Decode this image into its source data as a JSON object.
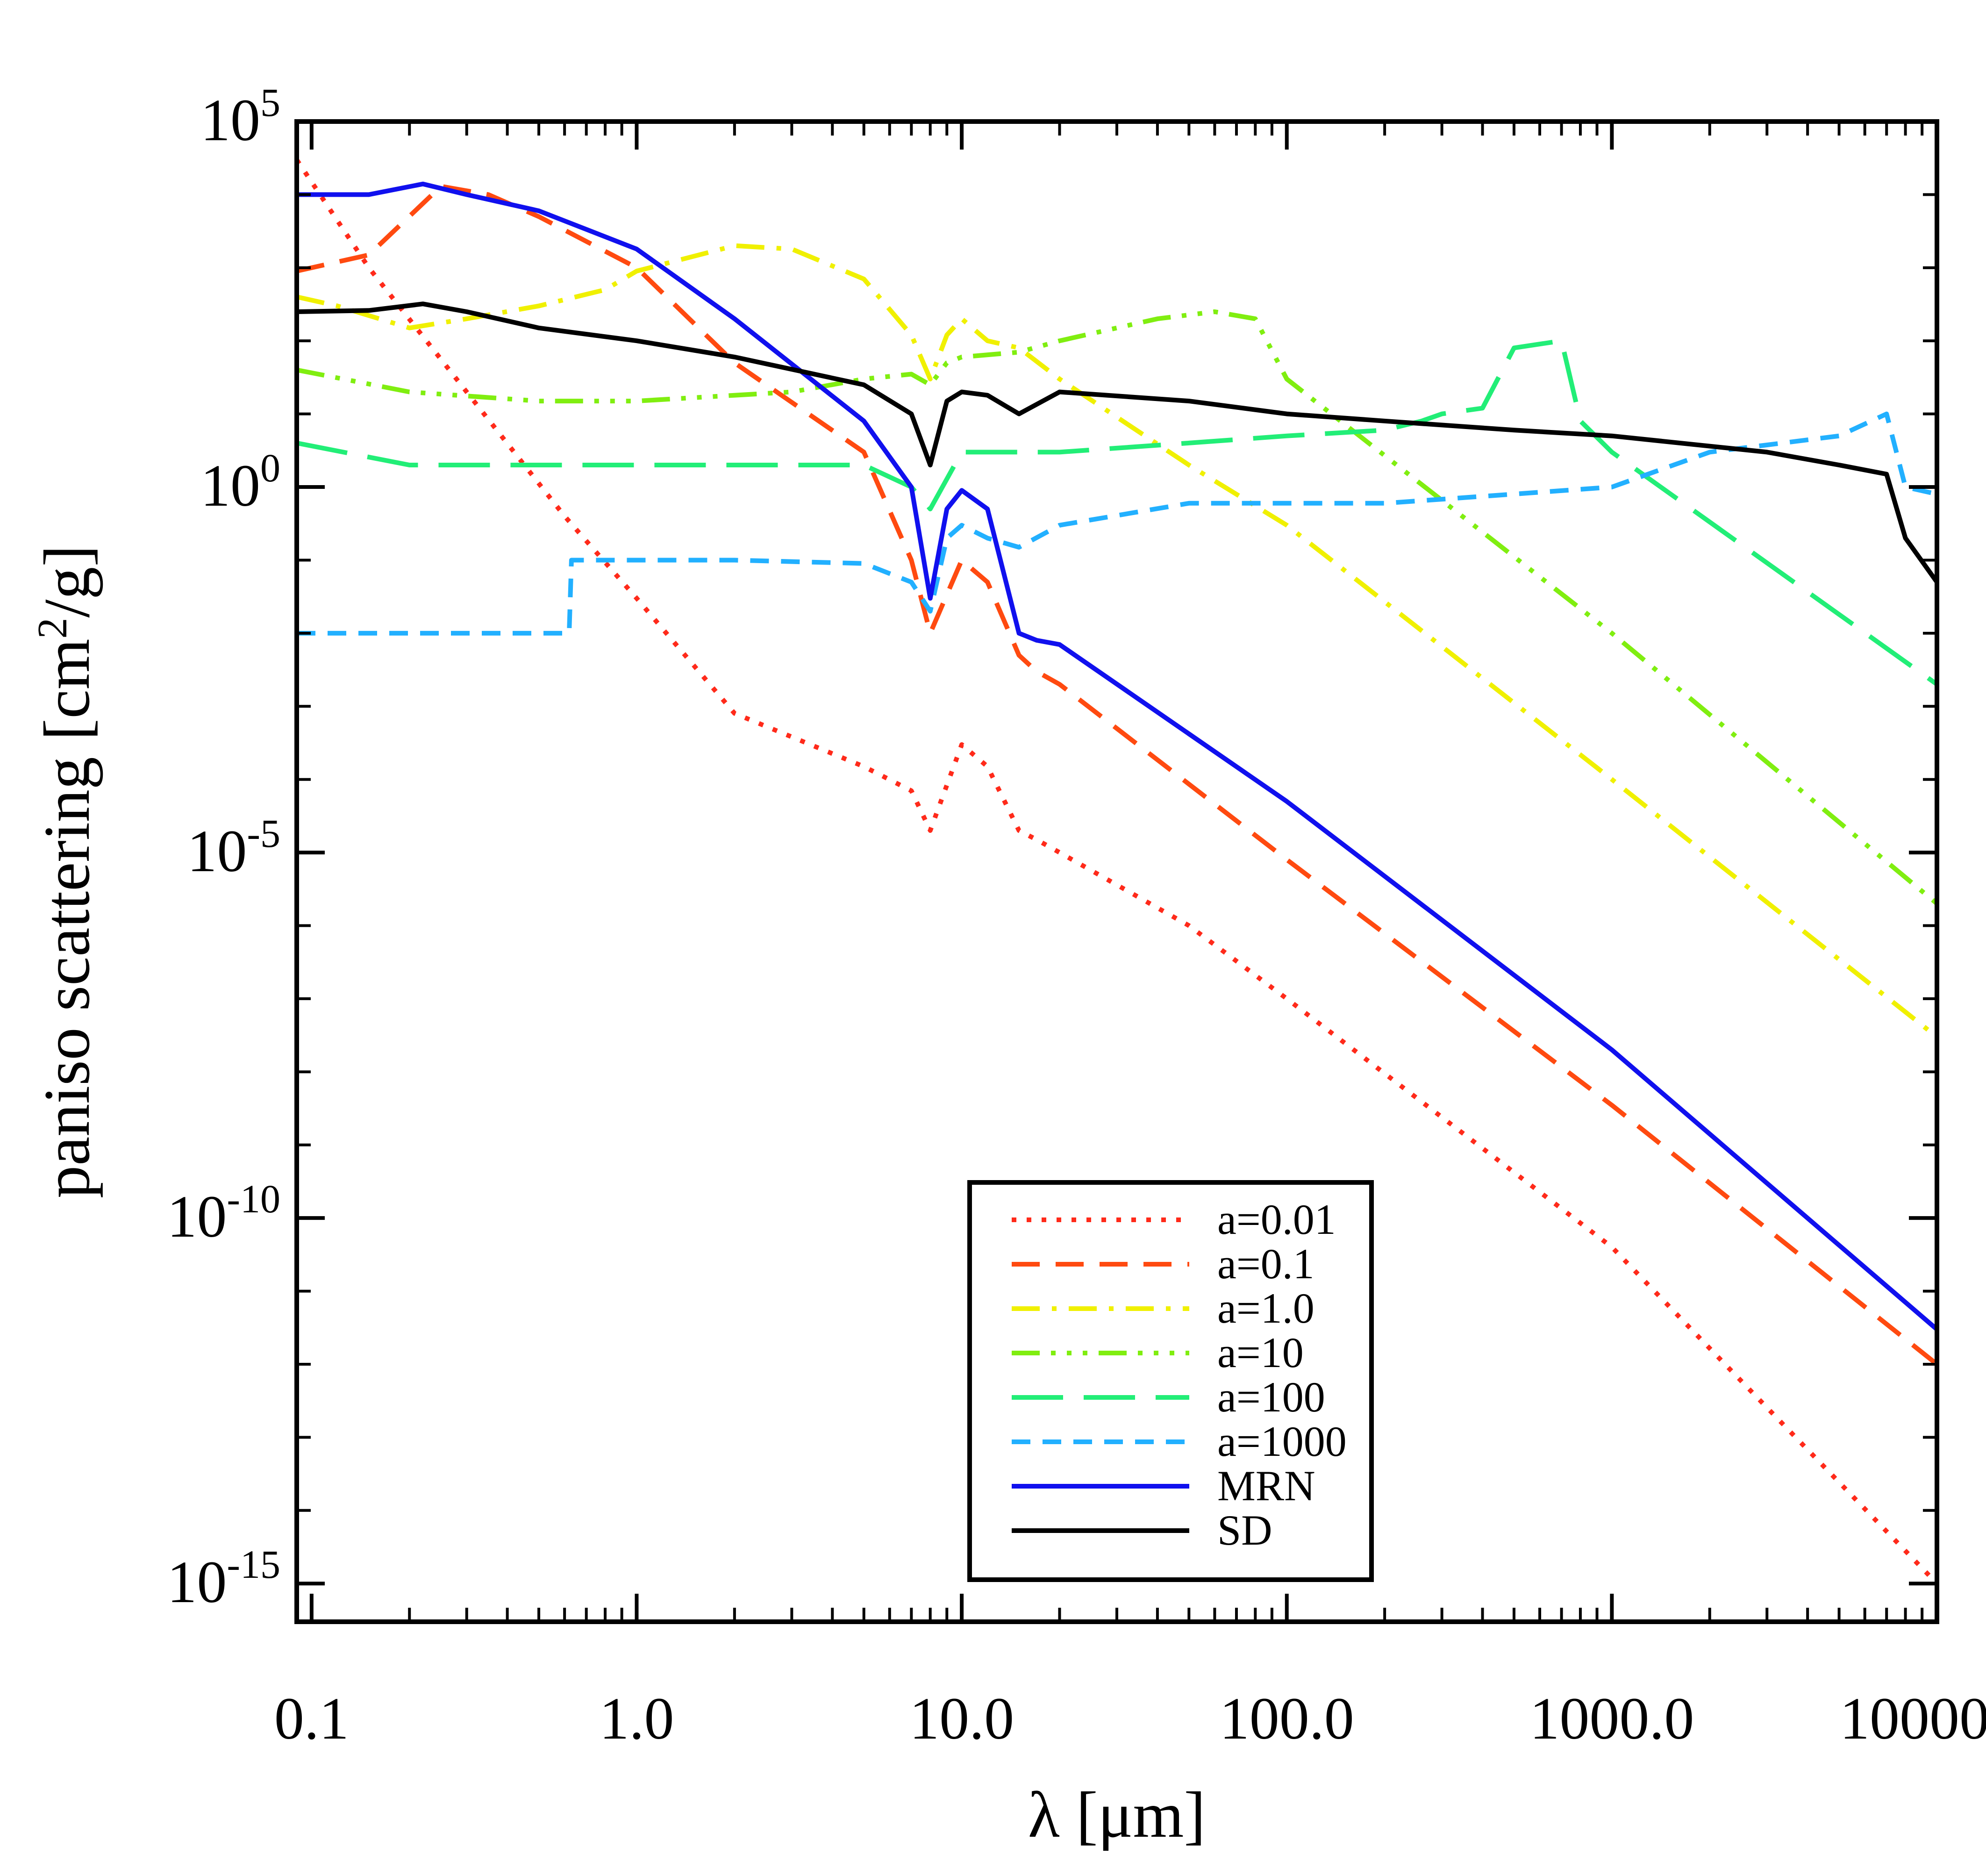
{
  "chart_data": {
    "type": "line",
    "xlabel": "λ [μm]",
    "ylabel": "paniso scattering [cm²/g]",
    "ylabel_main": "paniso scattering [cm",
    "ylabel_sup": "2",
    "ylabel_end": "/g]",
    "xscale": "log",
    "yscale": "log",
    "xlim": [
      0.09,
      10000
    ],
    "ylim": [
      3e-16,
      100000.0
    ],
    "grid": false,
    "legend_position": "bottom-center",
    "x_tick_labels": [
      "0.1",
      "1.0",
      "10.0",
      "100.0",
      "1000.0",
      "10000.0"
    ],
    "y_tick_labels": [
      {
        "base": "10",
        "exp": "5"
      },
      {
        "base": "10",
        "exp": "0"
      },
      {
        "base": "10",
        "exp": "-5"
      },
      {
        "base": "10",
        "exp": "-10"
      },
      {
        "base": "10",
        "exp": "-15"
      }
    ],
    "series": [
      {
        "name": "a=0.01",
        "color": "#ff2a1a",
        "dash": "dotted",
        "points": [
          [
            0.09,
            30000.0
          ],
          [
            0.15,
            1000.0
          ],
          [
            0.3,
            20
          ],
          [
            0.6,
            0.4
          ],
          [
            1,
            0.03
          ],
          [
            2,
            0.0008
          ],
          [
            5,
            0.00015
          ],
          [
            7,
            7e-05
          ],
          [
            8,
            2e-05
          ],
          [
            10,
            0.0003
          ],
          [
            12,
            0.00015
          ],
          [
            15,
            2e-05
          ],
          [
            17,
            1.5e-05
          ],
          [
            20,
            1e-05
          ],
          [
            50,
            1e-06
          ],
          [
            100,
            1e-07
          ],
          [
            1000,
            4e-11
          ],
          [
            10000,
            1e-15
          ]
        ]
      },
      {
        "name": "a=0.1",
        "color": "#ff4a10",
        "dash": "dashed",
        "points": [
          [
            0.09,
            900.0
          ],
          [
            0.15,
            1500.0
          ],
          [
            0.25,
            13000.0
          ],
          [
            0.35,
            10000.0
          ],
          [
            0.5,
            5000.0
          ],
          [
            1,
            1000.0
          ],
          [
            2,
            50
          ],
          [
            5,
            3
          ],
          [
            7,
            0.1
          ],
          [
            8,
            0.01
          ],
          [
            10,
            0.1
          ],
          [
            12,
            0.05
          ],
          [
            15,
            0.005
          ],
          [
            17,
            0.003
          ],
          [
            20,
            0.002
          ],
          [
            100,
            8e-06
          ],
          [
            1000,
            3.5e-09
          ],
          [
            10000,
            1e-12
          ]
        ]
      },
      {
        "name": "a=1.0",
        "color": "#f0f000",
        "dash": "dashdot",
        "points": [
          [
            0.09,
            400
          ],
          [
            0.12,
            300
          ],
          [
            0.2,
            150
          ],
          [
            0.3,
            200
          ],
          [
            0.5,
            300
          ],
          [
            0.8,
            500
          ],
          [
            1,
            900
          ],
          [
            2,
            2000
          ],
          [
            3,
            1800
          ],
          [
            5,
            700
          ],
          [
            7,
            120
          ],
          [
            8,
            30
          ],
          [
            9,
            120
          ],
          [
            10,
            200
          ],
          [
            12,
            100
          ],
          [
            15,
            80
          ],
          [
            20,
            30
          ],
          [
            50,
            2
          ],
          [
            100,
            0.3
          ],
          [
            1000,
            0.0001
          ],
          [
            10000,
            3e-08
          ]
        ]
      },
      {
        "name": "a=10",
        "color": "#80ee10",
        "dash": "dashdotdotdot",
        "points": [
          [
            0.09,
            40
          ],
          [
            0.2,
            20
          ],
          [
            0.5,
            15
          ],
          [
            1,
            15
          ],
          [
            2,
            18
          ],
          [
            3,
            20
          ],
          [
            5,
            30
          ],
          [
            7,
            35
          ],
          [
            8,
            25
          ],
          [
            9,
            50
          ],
          [
            10,
            60
          ],
          [
            15,
            70
          ],
          [
            20,
            100
          ],
          [
            40,
            200
          ],
          [
            60,
            250
          ],
          [
            80,
            200
          ],
          [
            100,
            30
          ],
          [
            1000,
            0.01
          ],
          [
            10000,
            2e-06
          ]
        ]
      },
      {
        "name": "a=100",
        "color": "#22ee77",
        "dash": "longdash",
        "points": [
          [
            0.09,
            4
          ],
          [
            0.2,
            2
          ],
          [
            0.5,
            2
          ],
          [
            1,
            2
          ],
          [
            2,
            2
          ],
          [
            5,
            2
          ],
          [
            7,
            1
          ],
          [
            8,
            0.5
          ],
          [
            10,
            3
          ],
          [
            15,
            3
          ],
          [
            20,
            3
          ],
          [
            50,
            4
          ],
          [
            100,
            5
          ],
          [
            200,
            6
          ],
          [
            260,
            8
          ],
          [
            300,
            10
          ],
          [
            400,
            12
          ],
          [
            500,
            80
          ],
          [
            700,
            100
          ],
          [
            800,
            8
          ],
          [
            1000,
            3
          ],
          [
            10000,
            0.002
          ]
        ]
      },
      {
        "name": "a=1000",
        "color": "#22b0ff",
        "dash": "shortdash",
        "points": [
          [
            0.09,
            0.01
          ],
          [
            0.62,
            0.01
          ],
          [
            0.63,
            0.1
          ],
          [
            1,
            0.1
          ],
          [
            2,
            0.1
          ],
          [
            5,
            0.09
          ],
          [
            7,
            0.05
          ],
          [
            8,
            0.02
          ],
          [
            9,
            0.2
          ],
          [
            10,
            0.3
          ],
          [
            12,
            0.2
          ],
          [
            15,
            0.15
          ],
          [
            20,
            0.3
          ],
          [
            50,
            0.6
          ],
          [
            100,
            0.6
          ],
          [
            200,
            0.6
          ],
          [
            500,
            0.8
          ],
          [
            1000,
            1
          ],
          [
            2000,
            3
          ],
          [
            5000,
            5
          ],
          [
            7000,
            10
          ],
          [
            8000,
            1
          ],
          [
            10000,
            0.8
          ]
        ]
      },
      {
        "name": "MRN",
        "color": "#1010ee",
        "dash": "solid",
        "points": [
          [
            0.09,
            10000.0
          ],
          [
            0.15,
            10000.0
          ],
          [
            0.22,
            14000.0
          ],
          [
            0.3,
            10000.0
          ],
          [
            0.5,
            6000.0
          ],
          [
            1,
            1800.0
          ],
          [
            2,
            200
          ],
          [
            5,
            8
          ],
          [
            7,
            1
          ],
          [
            8,
            0.03
          ],
          [
            9,
            0.5
          ],
          [
            10,
            0.9
          ],
          [
            12,
            0.5
          ],
          [
            15,
            0.01
          ],
          [
            17,
            0.008
          ],
          [
            20,
            0.007
          ],
          [
            100,
            5e-05
          ],
          [
            1000,
            2e-08
          ],
          [
            10000,
            3e-12
          ]
        ]
      },
      {
        "name": "SD",
        "color": "#000000",
        "dash": "solid",
        "points": [
          [
            0.09,
            250
          ],
          [
            0.15,
            260
          ],
          [
            0.22,
            320
          ],
          [
            0.3,
            250
          ],
          [
            0.5,
            150
          ],
          [
            1,
            100
          ],
          [
            2,
            60
          ],
          [
            5,
            25
          ],
          [
            7,
            10
          ],
          [
            8,
            2
          ],
          [
            9,
            15
          ],
          [
            10,
            20
          ],
          [
            12,
            18
          ],
          [
            15,
            10
          ],
          [
            20,
            20
          ],
          [
            50,
            15
          ],
          [
            100,
            10
          ],
          [
            200,
            8
          ],
          [
            500,
            6
          ],
          [
            1000,
            5
          ],
          [
            3000,
            3
          ],
          [
            5000,
            2
          ],
          [
            7000,
            1.5
          ],
          [
            8000,
            0.2
          ],
          [
            10000,
            0.05
          ]
        ]
      }
    ]
  }
}
